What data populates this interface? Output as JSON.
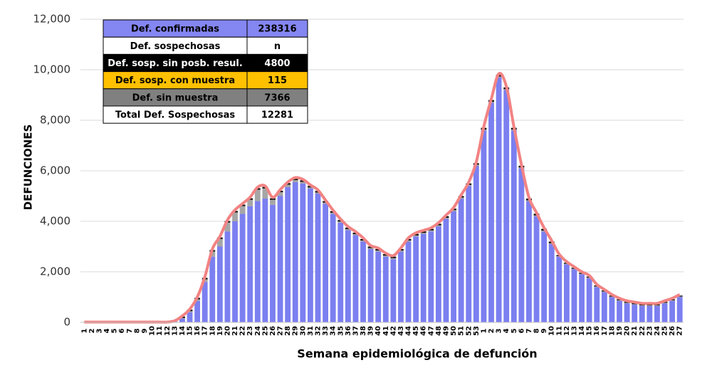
{
  "chart_data": {
    "type": "stacked_bar_line",
    "ylabel": "DEFUNCIONES",
    "xlabel": "Semana epidemiológica de defunción",
    "categories": [
      1,
      2,
      3,
      4,
      5,
      6,
      7,
      8,
      9,
      10,
      11,
      12,
      13,
      14,
      15,
      16,
      17,
      18,
      19,
      20,
      21,
      22,
      23,
      24,
      25,
      26,
      27,
      28,
      29,
      30,
      31,
      32,
      33,
      34,
      35,
      36,
      37,
      38,
      39,
      40,
      41,
      42,
      43,
      44,
      45,
      46,
      47,
      48,
      49,
      50,
      51,
      52,
      53,
      1,
      2,
      3,
      4,
      5,
      6,
      7,
      8,
      9,
      10,
      11,
      12,
      13,
      14,
      15,
      16,
      17,
      18,
      19,
      20,
      21,
      22,
      23,
      24,
      25,
      26,
      27
    ],
    "ylim": [
      0,
      12000
    ],
    "yticks": [
      0,
      {
        "value": 2000,
        "label": "2,000"
      },
      {
        "value": 4000,
        "label": "4,000"
      },
      {
        "value": 6000,
        "label": "6,000"
      },
      {
        "value": 8000,
        "label": "8,000"
      },
      {
        "value": 10000,
        "label": "10,000"
      },
      {
        "value": 12000,
        "label": "12,000"
      }
    ],
    "grid": true,
    "series": [
      {
        "color": "#7b7ff0",
        "values": [
          0,
          0,
          0,
          0,
          0,
          0,
          0,
          0,
          0,
          0,
          0,
          0,
          30,
          150,
          400,
          850,
          1600,
          2600,
          3000,
          3600,
          4000,
          4300,
          4600,
          4800,
          4900,
          4650,
          5000,
          5350,
          5550,
          5500,
          5300,
          5100,
          4700,
          4300,
          3950,
          3650,
          3450,
          3200,
          2900,
          2800,
          2600,
          2500,
          2800,
          3200,
          3400,
          3500,
          3600,
          3800,
          4100,
          4400,
          4900,
          5400,
          6200,
          7600,
          8700,
          9700,
          9200,
          7600,
          6100,
          4800,
          4200,
          3600,
          3100,
          2600,
          2300,
          2100,
          1900,
          1750,
          1400,
          1200,
          1000,
          850,
          750,
          700,
          650,
          650,
          650,
          750,
          850,
          1000
        ]
      },
      {
        "color": "#a6a6a6",
        "values": [
          0,
          0,
          0,
          0,
          0,
          0,
          0,
          0,
          0,
          0,
          0,
          0,
          0,
          20,
          40,
          60,
          100,
          200,
          300,
          350,
          350,
          300,
          250,
          450,
          400,
          200,
          150,
          100,
          80,
          60,
          40,
          40,
          40,
          40,
          40,
          40,
          40,
          40,
          40,
          40,
          40,
          40,
          40,
          40,
          40,
          40,
          40,
          40,
          40,
          40,
          40,
          40,
          40,
          30,
          30,
          30,
          30,
          30,
          30,
          30,
          30,
          30,
          30,
          20,
          20,
          20,
          20,
          20,
          20,
          20,
          20,
          20,
          20,
          20,
          20,
          20,
          20,
          20,
          20,
          20
        ]
      },
      {
        "color": "#111111",
        "values": [
          0,
          0,
          0,
          0,
          0,
          0,
          0,
          0,
          0,
          0,
          0,
          0,
          0,
          60,
          60,
          60,
          60,
          60,
          60,
          60,
          60,
          60,
          60,
          60,
          60,
          60,
          60,
          60,
          60,
          60,
          60,
          60,
          60,
          60,
          60,
          60,
          60,
          60,
          60,
          60,
          60,
          60,
          60,
          60,
          60,
          60,
          60,
          60,
          60,
          60,
          60,
          60,
          60,
          70,
          70,
          70,
          70,
          70,
          70,
          70,
          70,
          70,
          70,
          40,
          40,
          40,
          40,
          40,
          40,
          40,
          40,
          40,
          40,
          40,
          40,
          40,
          40,
          40,
          40,
          40
        ]
      }
    ],
    "line": {
      "color": "#f28383",
      "values": [
        10,
        10,
        10,
        10,
        10,
        10,
        10,
        10,
        10,
        10,
        10,
        10,
        60,
        250,
        520,
        1000,
        1800,
        2900,
        3400,
        4050,
        4450,
        4700,
        4950,
        5350,
        5400,
        4950,
        5250,
        5550,
        5730,
        5660,
        5440,
        5240,
        4840,
        4440,
        4090,
        3790,
        3590,
        3340,
        3040,
        2940,
        2740,
        2640,
        2940,
        3340,
        3540,
        3640,
        3740,
        3940,
        4240,
        4540,
        5040,
        5540,
        6340,
        7740,
        8840,
        9840,
        9340,
        7740,
        6240,
        4940,
        4340,
        3740,
        3240,
        2700,
        2400,
        2200,
        2000,
        1850,
        1500,
        1300,
        1100,
        950,
        850,
        800,
        750,
        750,
        750,
        850,
        950,
        1100
      ]
    },
    "table": {
      "rows": [
        {
          "cells": [
            "Def. confirmadas",
            238316
          ],
          "fill": "#8486f2",
          "color": "#000000"
        },
        {
          "cells": [
            "Def. sospechosas",
            "n"
          ],
          "fill": "#ffffff",
          "color": "#000000"
        },
        {
          "cells": [
            "Def. sosp. sin posb. resul.",
            4800
          ],
          "fill": "#000000",
          "color": "#ffffff"
        },
        {
          "cells": [
            "Def. sosp. con  muestra",
            115
          ],
          "fill": "#ffc000",
          "color": "#000000"
        },
        {
          "cells": [
            "Def. sin muestra",
            7366
          ],
          "fill": "#808080",
          "color": "#000000"
        },
        {
          "cells": [
            "Total Def. Sospechosas",
            12281
          ],
          "fill": "#ffffff",
          "color": "#000000"
        }
      ]
    }
  }
}
